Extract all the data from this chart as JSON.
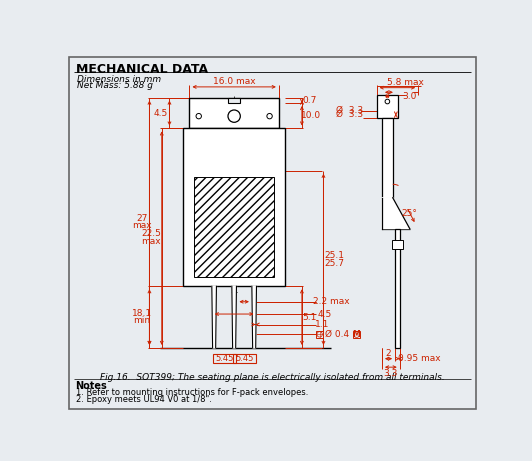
{
  "title": "MECHANICAL DATA",
  "subtitle1": "Dimensions in mm",
  "subtitle2": "Net Mass: 5.88 g",
  "fig_caption": "Fig.16.  SOT399; The seating plane is electrically isolated from all terminals.",
  "notes_title": "Notes",
  "notes": [
    "1. Refer to mounting instructions for F-pack envelopes.",
    "2. Epoxy meets UL94 V0 at 1/8\"."
  ],
  "bg_color": "#e8ecf0",
  "line_color": "#000000",
  "dim_color": "#cc2200"
}
